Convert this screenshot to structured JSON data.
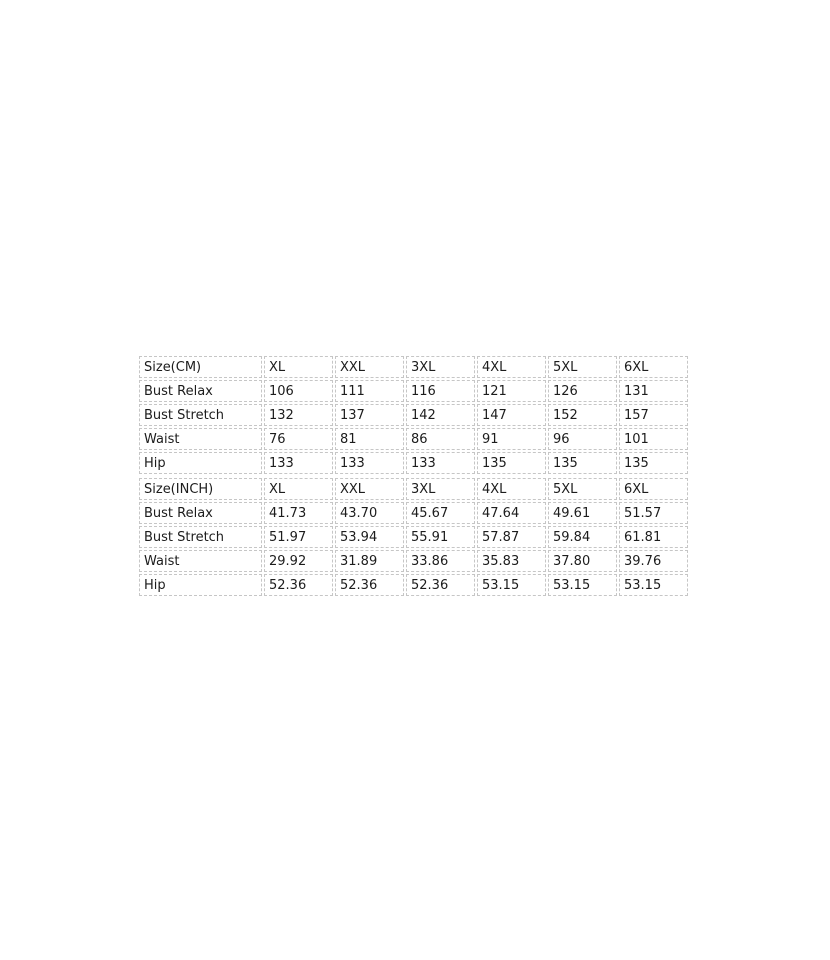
{
  "colors": {
    "background": "#ffffff",
    "cell_border": "#c6c6c6",
    "text": "#1c1c1c"
  },
  "tables": {
    "cm": {
      "header": [
        "Size(CM)",
        "XL",
        "XXL",
        "3XL",
        "4XL",
        "5XL",
        "6XL"
      ],
      "rows": [
        {
          "label": "Bust Relax",
          "values": [
            "106",
            "111",
            "116",
            "121",
            "126",
            "131"
          ]
        },
        {
          "label": "Bust Stretch",
          "values": [
            "132",
            "137",
            "142",
            "147",
            "152",
            "157"
          ]
        },
        {
          "label": "Waist",
          "values": [
            "76",
            "81",
            "86",
            "91",
            "96",
            "101"
          ]
        },
        {
          "label": "Hip",
          "values": [
            "133",
            "133",
            "133",
            "135",
            "135",
            "135"
          ]
        }
      ]
    },
    "inch": {
      "header": [
        "Size(INCH)",
        "XL",
        "XXL",
        "3XL",
        "4XL",
        "5XL",
        "6XL"
      ],
      "rows": [
        {
          "label": "Bust Relax",
          "values": [
            "41.73",
            "43.70",
            "45.67",
            "47.64",
            "49.61",
            "51.57"
          ]
        },
        {
          "label": "Bust Stretch",
          "values": [
            "51.97",
            "53.94",
            "55.91",
            "57.87",
            "59.84",
            "61.81"
          ]
        },
        {
          "label": "Waist",
          "values": [
            "29.92",
            "31.89",
            "33.86",
            "35.83",
            "37.80",
            "39.76"
          ]
        },
        {
          "label": "Hip",
          "values": [
            "52.36",
            "52.36",
            "52.36",
            "53.15",
            "53.15",
            "53.15"
          ]
        }
      ]
    }
  }
}
